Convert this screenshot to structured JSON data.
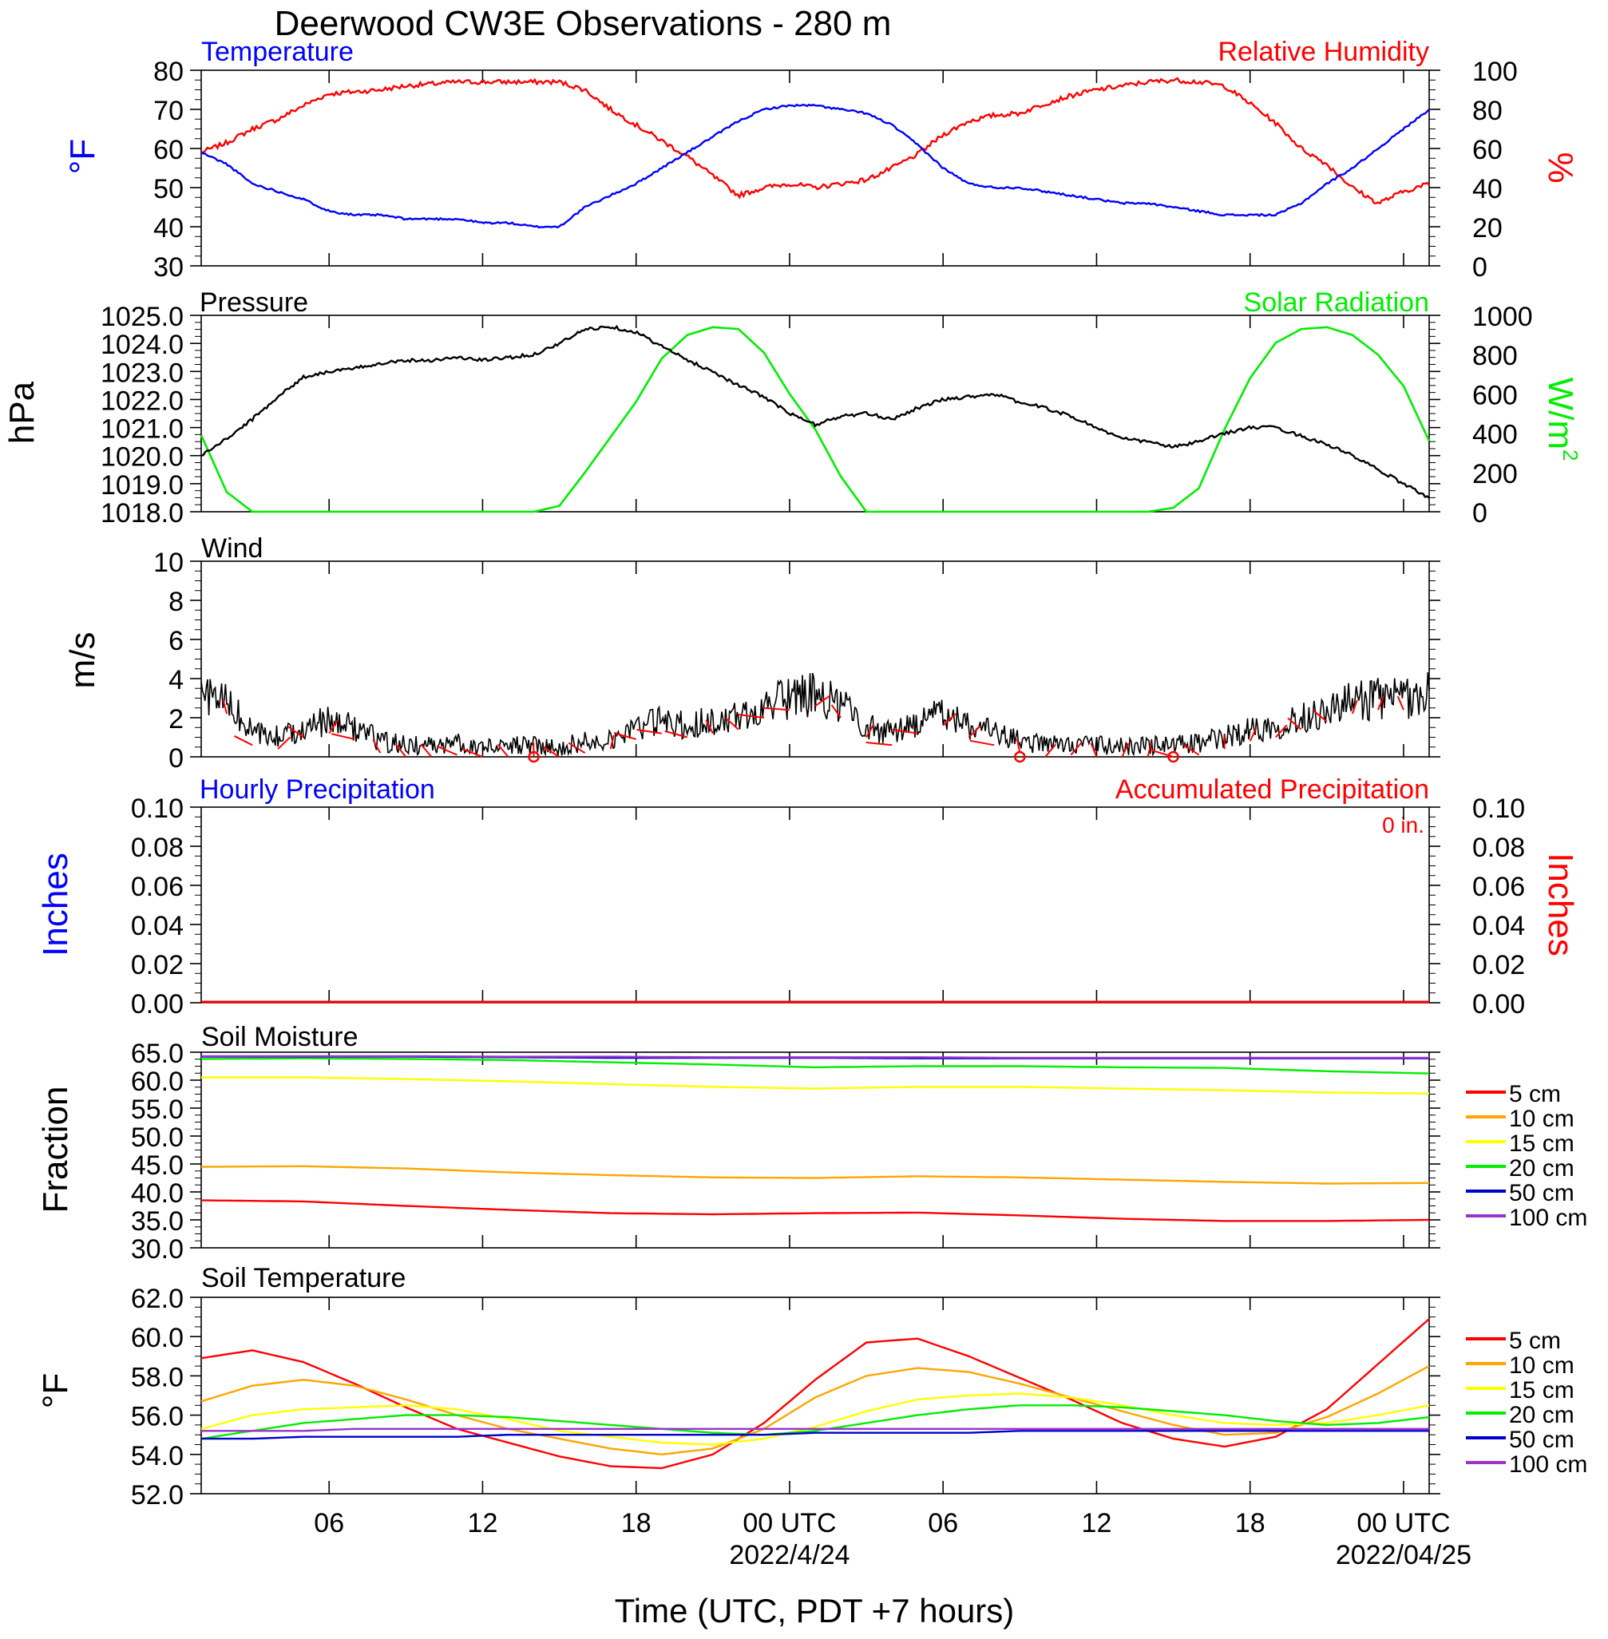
{
  "title": "Deerwood CW3E Observations - 280 m",
  "colors": {
    "blue": "#0000ff",
    "red": "#ff0000",
    "green": "#00ee00",
    "black": "#000000",
    "orange": "#ffa500",
    "yellow": "#ffff00",
    "purple": "#9a32cd",
    "soil_blue": "#0000cd",
    "soil_green": "#00ee00",
    "wind_barb": "#ff0000"
  },
  "x_axis": {
    "label": "Time (UTC, PDT +7 hours)",
    "range_hours": [
      0,
      48
    ],
    "ticks": [
      {
        "h": 5,
        "label": "06"
      },
      {
        "h": 11,
        "label": "12"
      },
      {
        "h": 17,
        "label": "18"
      },
      {
        "h": 23,
        "label": "00 UTC"
      },
      {
        "h": 29,
        "label": "06"
      },
      {
        "h": 35,
        "label": "12"
      },
      {
        "h": 41,
        "label": "18"
      },
      {
        "h": 47,
        "label": "00 UTC"
      }
    ],
    "date_labels": [
      {
        "h": 23,
        "label": "2022/4/24"
      },
      {
        "h": 47,
        "label": "2022/04/25"
      }
    ]
  },
  "panels": {
    "temp_rh": {
      "left_title": "Temperature",
      "right_title": "Relative Humidity",
      "left_unit": "°F",
      "right_unit": "%",
      "left_ticks": [
        "30",
        "40",
        "50",
        "60",
        "70",
        "80"
      ],
      "right_ticks": [
        "0",
        "20",
        "40",
        "60",
        "80",
        "100"
      ]
    },
    "pressure": {
      "left_title": "Pressure",
      "right_title": "Solar Radiation",
      "left_unit": "hPa",
      "right_unit_base": "W/m",
      "right_unit_sup": "2",
      "left_ticks": [
        "1018.0",
        "1019.0",
        "1020.0",
        "1021.0",
        "1022.0",
        "1023.0",
        "1024.0",
        "1025.0"
      ],
      "right_ticks": [
        "0",
        "200",
        "400",
        "600",
        "800",
        "1000"
      ]
    },
    "wind": {
      "left_title": "Wind",
      "left_unit": "m/s",
      "left_ticks": [
        "0",
        "2",
        "4",
        "6",
        "8",
        "10"
      ]
    },
    "precip": {
      "left_title": "Hourly Precipitation",
      "right_title": "Accumulated Precipitation",
      "left_unit": "Inches",
      "right_unit": "Inches",
      "total_note": "0 in.",
      "left_ticks": [
        "0.00",
        "0.02",
        "0.04",
        "0.06",
        "0.08",
        "0.10"
      ],
      "right_ticks": [
        "0.00",
        "0.02",
        "0.04",
        "0.06",
        "0.08",
        "0.10"
      ]
    },
    "soil_moisture": {
      "left_title": "Soil Moisture",
      "left_unit": "Fraction",
      "left_ticks": [
        "30.0",
        "35.0",
        "40.0",
        "45.0",
        "50.0",
        "55.0",
        "60.0",
        "65.0"
      ]
    },
    "soil_temp": {
      "left_title": "Soil Temperature",
      "left_unit": "°F",
      "left_ticks": [
        "52.0",
        "54.0",
        "56.0",
        "58.0",
        "60.0",
        "62.0"
      ]
    }
  },
  "legend_labels": [
    "5 cm",
    "10 cm",
    "15 cm",
    "20 cm",
    "50 cm",
    "100 cm"
  ],
  "chart_data": [
    {
      "type": "line",
      "title": "Temperature / Relative Humidity",
      "x_unit": "hours since start of record (UTC)",
      "x": [
        0,
        1,
        2,
        3,
        4,
        5,
        6,
        7,
        8,
        9,
        10,
        11,
        12,
        13,
        14,
        15,
        16,
        17,
        18,
        19,
        20,
        21,
        22,
        23,
        24,
        25,
        26,
        27,
        28,
        29,
        30,
        31,
        32,
        33,
        34,
        35,
        36,
        37,
        38,
        39,
        40,
        41,
        42,
        43,
        44,
        45,
        46,
        47,
        48
      ],
      "ylim_left": [
        30,
        80
      ],
      "ylim_right": [
        0,
        100
      ],
      "series": [
        {
          "name": "Temperature",
          "axis": "left",
          "color": "blue",
          "values": [
            59,
            56,
            51,
            49,
            47,
            44,
            43,
            43,
            42,
            42,
            42,
            41,
            41,
            40,
            40,
            45,
            48,
            51,
            55,
            59,
            63,
            67,
            70,
            71,
            71,
            70,
            69,
            66,
            61,
            55,
            51,
            50,
            50,
            49,
            48,
            47,
            46,
            46,
            45,
            44,
            43,
            43,
            43,
            46,
            51,
            55,
            60,
            65,
            70
          ]
        },
        {
          "name": "Relative Humidity",
          "axis": "right",
          "color": "red",
          "values": [
            58,
            63,
            70,
            75,
            82,
            88,
            89,
            90,
            92,
            93,
            94,
            94,
            94,
            94,
            94,
            90,
            80,
            72,
            64,
            56,
            46,
            36,
            40,
            42,
            40,
            42,
            44,
            50,
            57,
            67,
            74,
            77,
            78,
            83,
            87,
            90,
            92,
            94,
            95,
            94,
            92,
            83,
            73,
            60,
            52,
            40,
            32,
            38,
            42
          ]
        }
      ]
    },
    {
      "type": "line",
      "title": "Pressure / Solar Radiation",
      "x_unit": "hours since start of record (UTC)",
      "x": [
        0,
        1,
        2,
        3,
        4,
        5,
        6,
        7,
        8,
        9,
        10,
        11,
        12,
        13,
        14,
        15,
        16,
        17,
        18,
        19,
        20,
        21,
        22,
        23,
        24,
        25,
        26,
        27,
        28,
        29,
        30,
        31,
        32,
        33,
        34,
        35,
        36,
        37,
        38,
        39,
        40,
        41,
        42,
        43,
        44,
        45,
        46,
        47,
        48
      ],
      "ylim_left": [
        1018,
        1025
      ],
      "ylim_right": [
        0,
        1000
      ],
      "series": [
        {
          "name": "Pressure",
          "axis": "left",
          "color": "black",
          "unit": "hPa",
          "values": [
            1020.0,
            1020.6,
            1021.3,
            1022.1,
            1022.8,
            1023.0,
            1023.1,
            1023.3,
            1023.4,
            1023.4,
            1023.5,
            1023.4,
            1023.5,
            1023.6,
            1024.0,
            1024.5,
            1024.6,
            1024.4,
            1023.9,
            1023.4,
            1023.0,
            1022.5,
            1022.1,
            1021.5,
            1021.1,
            1021.4,
            1021.5,
            1021.3,
            1021.7,
            1022.0,
            1022.1,
            1022.2,
            1021.9,
            1021.7,
            1021.4,
            1021.0,
            1020.6,
            1020.5,
            1020.3,
            1020.5,
            1020.8,
            1021.0,
            1021.0,
            1020.7,
            1020.4,
            1020.0,
            1019.5,
            1019.0,
            1018.5
          ]
        },
        {
          "name": "Solar Radiation",
          "axis": "right",
          "color": "green",
          "unit": "W/m2",
          "values": [
            390,
            100,
            0,
            0,
            0,
            0,
            0,
            0,
            0,
            0,
            0,
            0,
            0,
            0,
            30,
            200,
            380,
            560,
            780,
            900,
            940,
            930,
            810,
            600,
            420,
            180,
            0,
            0,
            0,
            0,
            0,
            0,
            0,
            0,
            0,
            0,
            0,
            0,
            20,
            120,
            420,
            680,
            860,
            930,
            940,
            900,
            800,
            640,
            360
          ]
        }
      ]
    },
    {
      "type": "line",
      "title": "Wind",
      "x_unit": "hours since start of record (UTC)",
      "x": [
        0,
        1,
        2,
        3,
        4,
        5,
        6,
        7,
        8,
        9,
        10,
        11,
        12,
        13,
        14,
        15,
        16,
        17,
        18,
        19,
        20,
        21,
        22,
        23,
        24,
        25,
        26,
        27,
        28,
        29,
        30,
        31,
        32,
        33,
        34,
        35,
        36,
        37,
        38,
        39,
        40,
        41,
        42,
        43,
        44,
        45,
        46,
        47,
        48
      ],
      "ylim": [
        0,
        10
      ],
      "ylabel": "m/s",
      "series": [
        {
          "name": "Wind speed",
          "color": "black",
          "values": [
            3.2,
            2.8,
            1.2,
            1.0,
            1.6,
            1.8,
            1.5,
            0.8,
            0.6,
            0.6,
            0.7,
            0.5,
            0.6,
            0.6,
            0.5,
            0.8,
            1.0,
            1.5,
            1.8,
            1.6,
            1.8,
            2.0,
            2.6,
            3.0,
            3.2,
            2.6,
            1.6,
            1.2,
            1.8,
            2.2,
            1.6,
            1.2,
            0.8,
            0.6,
            0.7,
            0.6,
            0.5,
            0.6,
            0.6,
            0.7,
            1.0,
            1.4,
            1.6,
            2.0,
            2.4,
            2.8,
            3.0,
            3.0,
            3.2
          ]
        }
      ],
      "calm_markers_hours": [
        13,
        32,
        38
      ]
    },
    {
      "type": "bar",
      "title": "Hourly / Accumulated Precipitation",
      "ylim": [
        0,
        0.1
      ],
      "ylabel": "Inches",
      "accumulated_total": "0 in.",
      "series": [
        {
          "name": "Hourly Precipitation",
          "color": "blue",
          "values": [
            0
          ]
        },
        {
          "name": "Accumulated Precipitation",
          "color": "red",
          "values": [
            0
          ]
        }
      ]
    },
    {
      "type": "line",
      "title": "Soil Moisture",
      "x_unit": "hours since start of record (UTC)",
      "x": [
        0,
        4,
        8,
        12,
        16,
        20,
        24,
        28,
        32,
        36,
        40,
        44,
        48
      ],
      "ylim": [
        30,
        65
      ],
      "ylabel": "Fraction",
      "series": [
        {
          "name": "5 cm",
          "color": "red",
          "values": [
            38.5,
            38.3,
            37.5,
            36.8,
            36.2,
            36.0,
            36.2,
            36.3,
            35.8,
            35.2,
            34.8,
            34.8,
            35.0
          ]
        },
        {
          "name": "10 cm",
          "color": "orange",
          "values": [
            44.5,
            44.6,
            44.2,
            43.5,
            43.0,
            42.6,
            42.5,
            42.8,
            42.6,
            42.2,
            41.8,
            41.5,
            41.6
          ]
        },
        {
          "name": "15 cm",
          "color": "yellow",
          "values": [
            60.5,
            60.5,
            60.2,
            59.8,
            59.3,
            58.8,
            58.5,
            58.8,
            58.8,
            58.5,
            58.2,
            57.8,
            57.6
          ]
        },
        {
          "name": "20 cm",
          "color": "green",
          "values": [
            63.8,
            63.9,
            63.8,
            63.6,
            63.2,
            62.8,
            62.3,
            62.5,
            62.5,
            62.3,
            62.2,
            61.6,
            61.2
          ]
        },
        {
          "name": "50 cm",
          "color": "soil_blue",
          "values": [
            64.2,
            64.2,
            64.2,
            64.1,
            64.0,
            64.0,
            64.0,
            63.9,
            63.9,
            63.9,
            63.9,
            63.9,
            63.9
          ]
        },
        {
          "name": "100 cm",
          "color": "purple",
          "values": [
            64.3,
            64.3,
            64.3,
            64.2,
            64.2,
            64.1,
            64.1,
            64.1,
            64.0,
            64.0,
            64.0,
            64.0,
            64.0
          ]
        }
      ]
    },
    {
      "type": "line",
      "title": "Soil Temperature",
      "x_unit": "hours since start of record (UTC)",
      "x": [
        0,
        2,
        4,
        6,
        8,
        10,
        12,
        14,
        16,
        18,
        20,
        22,
        24,
        26,
        28,
        30,
        32,
        34,
        36,
        38,
        40,
        42,
        44,
        46,
        48
      ],
      "ylim": [
        52,
        62
      ],
      "ylabel": "°F",
      "series": [
        {
          "name": "5 cm",
          "color": "red",
          "values": [
            58.9,
            59.3,
            58.7,
            57.6,
            56.4,
            55.3,
            54.6,
            53.9,
            53.4,
            53.3,
            54.0,
            55.6,
            57.8,
            59.7,
            59.9,
            59.0,
            57.9,
            56.8,
            55.6,
            54.8,
            54.4,
            54.9,
            56.3,
            58.6,
            60.9
          ]
        },
        {
          "name": "10 cm",
          "color": "orange",
          "values": [
            56.7,
            57.5,
            57.8,
            57.5,
            56.8,
            56.0,
            55.3,
            54.8,
            54.3,
            54.0,
            54.3,
            55.3,
            56.9,
            58.0,
            58.4,
            58.2,
            57.6,
            56.9,
            56.2,
            55.5,
            55.0,
            55.1,
            55.9,
            57.1,
            58.5
          ]
        },
        {
          "name": "15 cm",
          "color": "yellow",
          "values": [
            55.3,
            56.0,
            56.3,
            56.4,
            56.5,
            56.3,
            55.8,
            55.2,
            54.9,
            54.6,
            54.5,
            54.8,
            55.4,
            56.2,
            56.8,
            57.0,
            57.1,
            56.9,
            56.5,
            56.0,
            55.6,
            55.5,
            55.6,
            56.0,
            56.5
          ]
        },
        {
          "name": "20 cm",
          "color": "green",
          "values": [
            54.8,
            55.2,
            55.6,
            55.8,
            56.0,
            56.0,
            55.9,
            55.7,
            55.5,
            55.3,
            55.1,
            55.0,
            55.2,
            55.6,
            56.0,
            56.3,
            56.5,
            56.5,
            56.4,
            56.2,
            56.0,
            55.7,
            55.5,
            55.6,
            55.9
          ]
        },
        {
          "name": "50 cm",
          "color": "soil_blue",
          "values": [
            54.8,
            54.8,
            54.9,
            54.9,
            54.9,
            54.9,
            55.0,
            55.0,
            55.0,
            55.0,
            55.0,
            55.0,
            55.1,
            55.1,
            55.1,
            55.1,
            55.2,
            55.2,
            55.2,
            55.2,
            55.2,
            55.2,
            55.2,
            55.2,
            55.2
          ]
        },
        {
          "name": "100 cm",
          "color": "purple",
          "values": [
            55.2,
            55.2,
            55.2,
            55.3,
            55.3,
            55.3,
            55.3,
            55.3,
            55.3,
            55.3,
            55.3,
            55.3,
            55.3,
            55.3,
            55.3,
            55.3,
            55.3,
            55.3,
            55.3,
            55.3,
            55.3,
            55.3,
            55.3,
            55.3,
            55.3
          ]
        }
      ]
    }
  ]
}
